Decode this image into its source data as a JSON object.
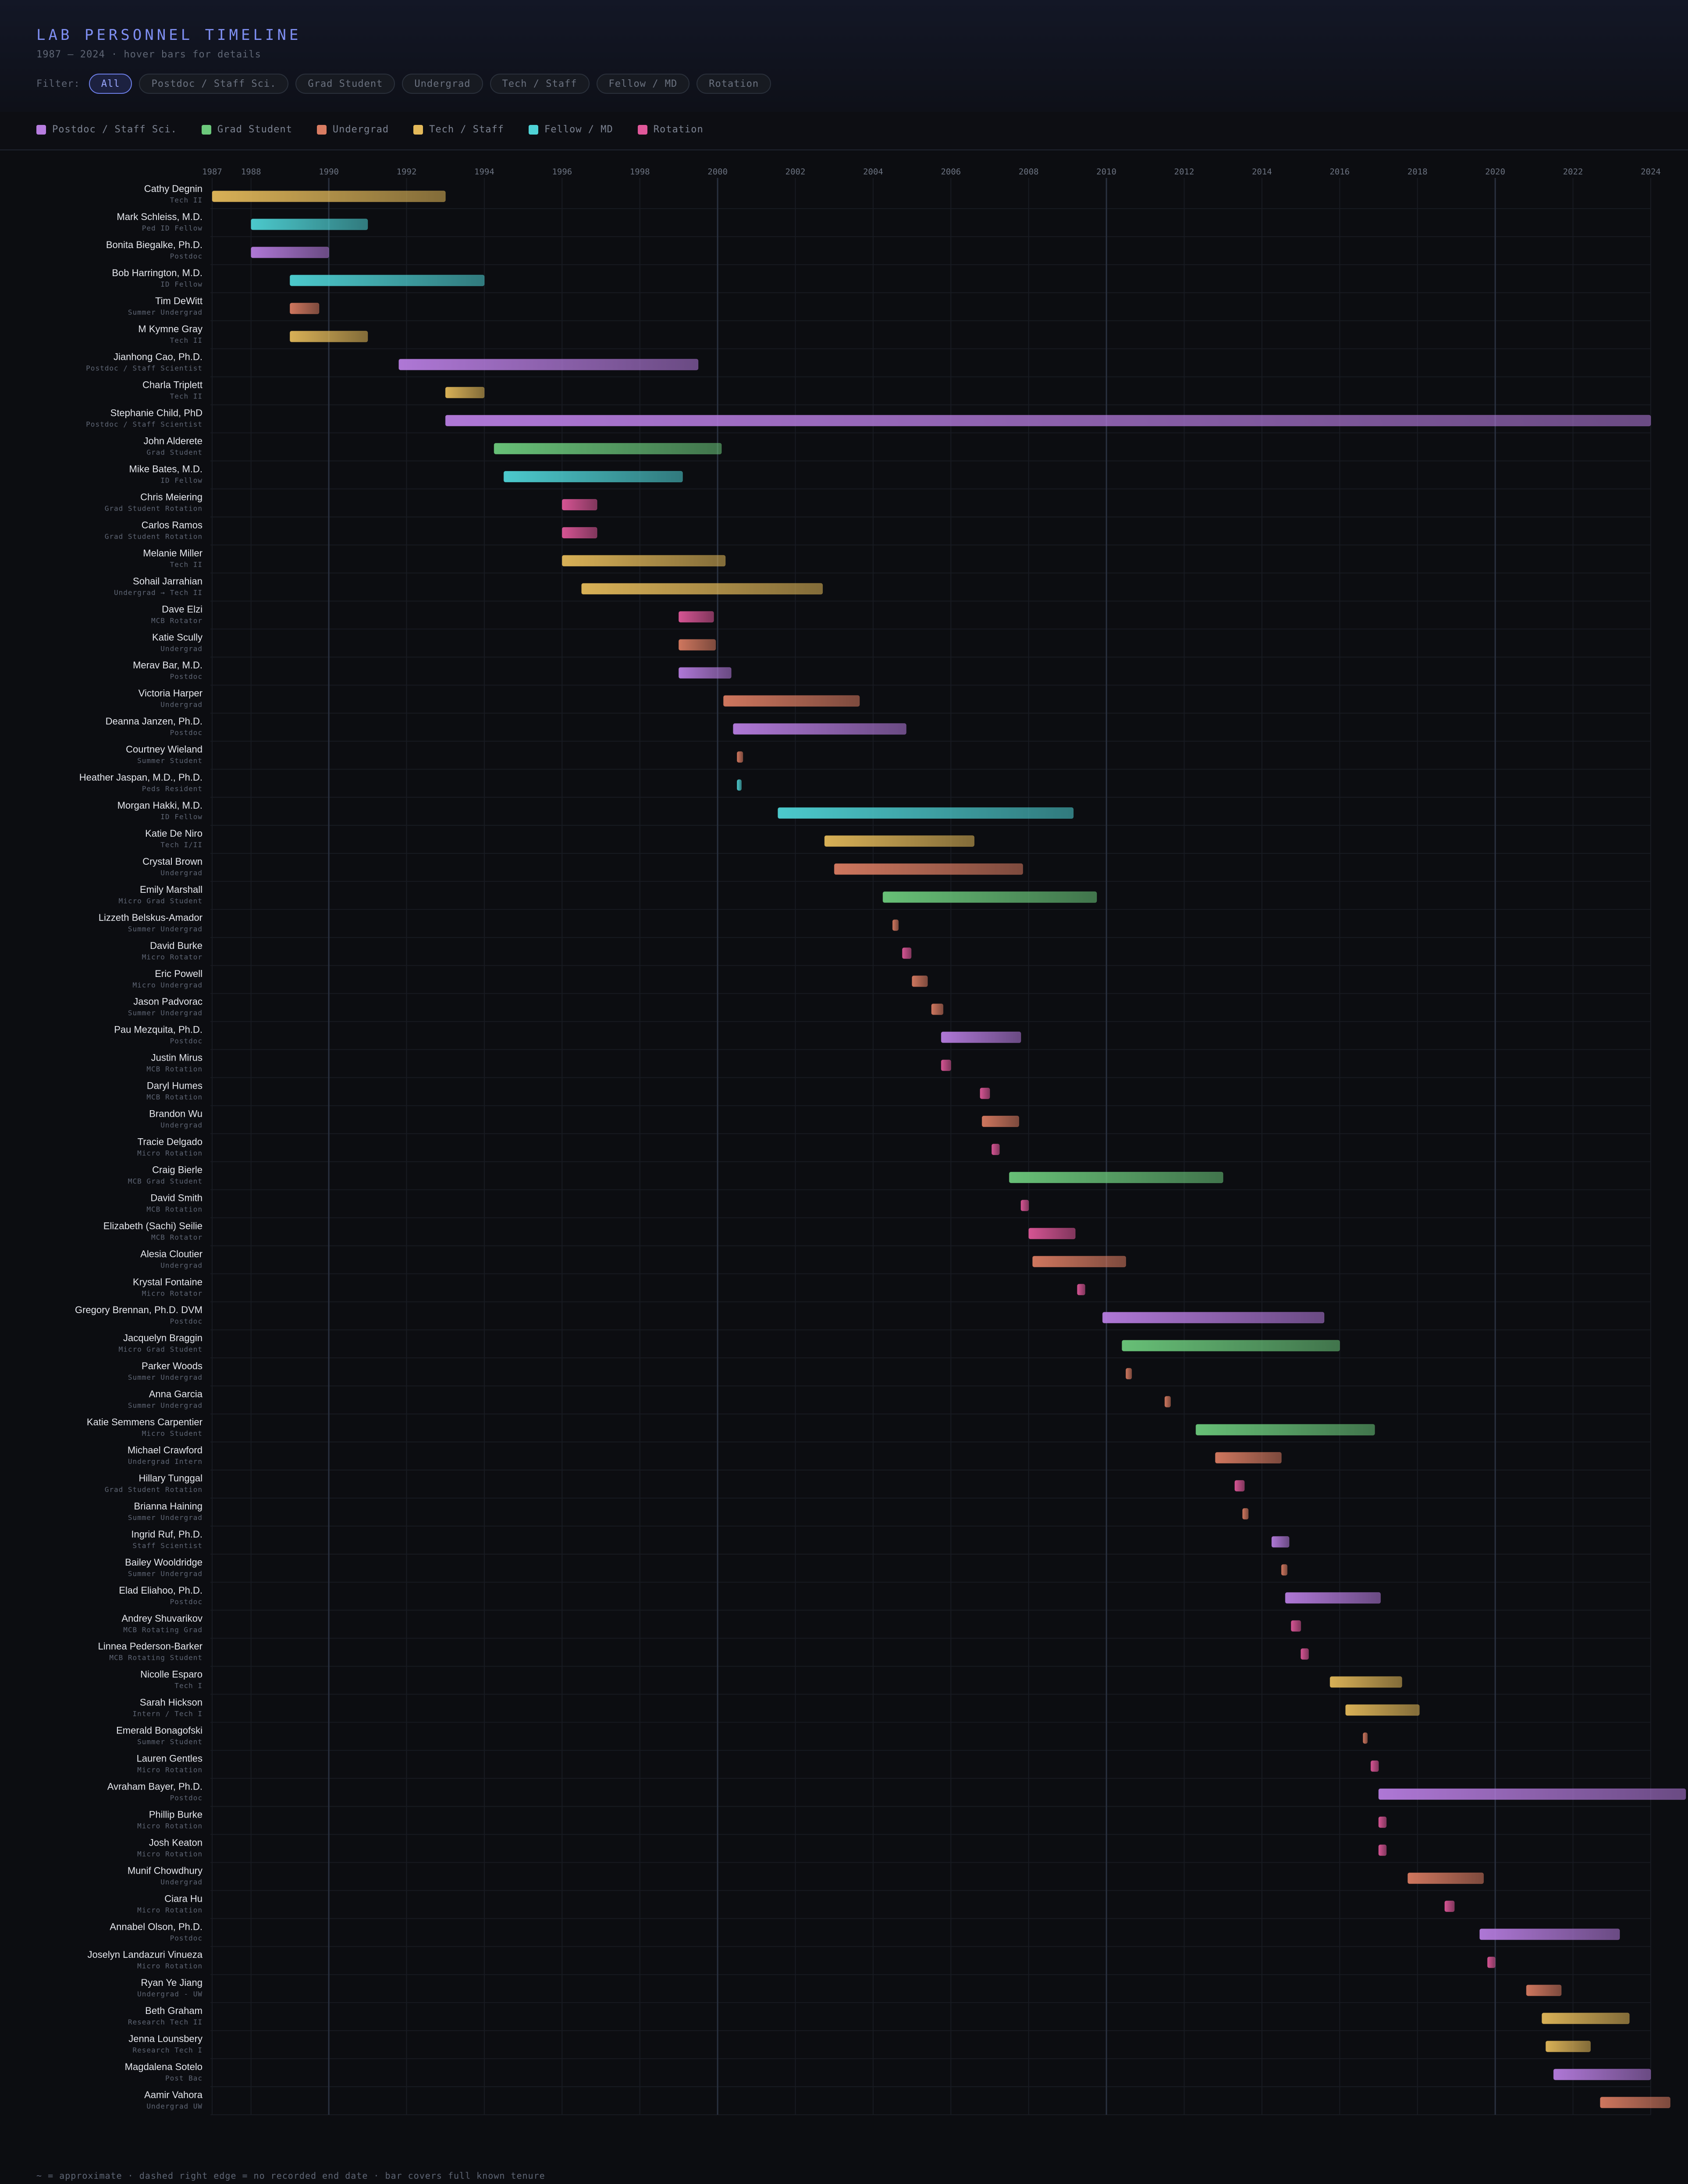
{
  "header": {
    "title": "LAB PERSONNEL TIMELINE",
    "subtitle": "1987 – 2024 · hover bars for details",
    "filter_label": "Filter:",
    "filters": [
      {
        "label": "All",
        "active": true
      },
      {
        "label": "Postdoc / Staff Sci.",
        "active": false
      },
      {
        "label": "Grad Student",
        "active": false
      },
      {
        "label": "Undergrad",
        "active": false
      },
      {
        "label": "Tech / Staff",
        "active": false
      },
      {
        "label": "Fellow / MD",
        "active": false
      },
      {
        "label": "Rotation",
        "active": false
      }
    ]
  },
  "legend": [
    {
      "label": "Postdoc / Staff Sci.",
      "color": "#b77de0"
    },
    {
      "label": "Grad Student",
      "color": "#6cc97c"
    },
    {
      "label": "Undergrad",
      "color": "#d97c62"
    },
    {
      "label": "Tech / Staff",
      "color": "#e3b95a"
    },
    {
      "label": "Fellow / MD",
      "color": "#4fd3d6"
    },
    {
      "label": "Rotation",
      "color": "#e0589a"
    }
  ],
  "footer": "~ = approximate · dashed right edge = no recorded end date · bar covers full known tenure",
  "chart_data": {
    "type": "gantt",
    "x_ticks": [
      1987,
      1988,
      1990,
      1992,
      1994,
      1996,
      1998,
      2000,
      2002,
      2004,
      2006,
      2008,
      2010,
      2012,
      2014,
      2016,
      2018,
      2020,
      2022,
      2024
    ],
    "xlim": [
      1987,
      2024
    ],
    "highlight_years": [
      1990,
      2000,
      2010,
      2020
    ],
    "grid": true,
    "colors": {
      "postdoc": "#b77de0",
      "grad": "#6cc97c",
      "undergrad": "#d97c62",
      "tech": "#e3b95a",
      "fellow": "#4fd3d6",
      "rotation": "#e0589a"
    },
    "people": [
      {
        "name": "Cathy Degnin",
        "role": "Tech II",
        "cat": "tech",
        "start": 1987.0,
        "end": 1993.0
      },
      {
        "name": "Mark Schleiss, M.D.",
        "role": "Ped ID Fellow",
        "cat": "fellow",
        "start": 1988.0,
        "end": 1991.0
      },
      {
        "name": "Bonita Biegalke, Ph.D.",
        "role": "Postdoc",
        "cat": "postdoc",
        "start": 1988.0,
        "end": 1990.0
      },
      {
        "name": "Bob Harrington, M.D.",
        "role": "ID Fellow",
        "cat": "fellow",
        "start": 1989.0,
        "end": 1994.0
      },
      {
        "name": "Tim DeWitt",
        "role": "Summer Undergrad",
        "cat": "undergrad",
        "start": 1989.0,
        "end": 1989.75
      },
      {
        "name": "M Kymne Gray",
        "role": "Tech II",
        "cat": "tech",
        "start": 1989.0,
        "end": 1991.0
      },
      {
        "name": "Jianhong Cao, Ph.D.",
        "role": "Postdoc / Staff Scientist",
        "cat": "postdoc",
        "start": 1991.8,
        "end": 1999.5
      },
      {
        "name": "Charla Triplett",
        "role": "Tech II",
        "cat": "tech",
        "start": 1993.0,
        "end": 1994.0
      },
      {
        "name": "Stephanie Child, PhD",
        "role": "Postdoc / Staff Scientist",
        "cat": "postdoc",
        "start": 1993.0,
        "end": 2024.0
      },
      {
        "name": "John Alderete",
        "role": "Grad Student",
        "cat": "grad",
        "start": 1994.25,
        "end": 2000.1
      },
      {
        "name": "Mike Bates, M.D.",
        "role": "ID Fellow",
        "cat": "fellow",
        "start": 1994.5,
        "end": 1999.1
      },
      {
        "name": "Chris Meiering",
        "role": "Grad Student Rotation",
        "cat": "rotation",
        "start": 1996.0,
        "end": 1996.9
      },
      {
        "name": "Carlos Ramos",
        "role": "Grad Student Rotation",
        "cat": "rotation",
        "start": 1996.0,
        "end": 1996.9
      },
      {
        "name": "Melanie Miller",
        "role": "Tech II",
        "cat": "tech",
        "start": 1996.0,
        "end": 2000.2
      },
      {
        "name": "Sohail Jarrahian",
        "role": "Undergrad → Tech II",
        "cat": "tech",
        "start": 1996.5,
        "end": 2002.7
      },
      {
        "name": "Dave Elzi",
        "role": "MCB Rotator",
        "cat": "rotation",
        "start": 1999.0,
        "end": 1999.9
      },
      {
        "name": "Katie Scully",
        "role": "Undergrad",
        "cat": "undergrad",
        "start": 1999.0,
        "end": 1999.95
      },
      {
        "name": "Merav Bar, M.D.",
        "role": "Postdoc",
        "cat": "postdoc",
        "start": 1999.0,
        "end": 2000.35
      },
      {
        "name": "Victoria Harper",
        "role": "Undergrad",
        "cat": "undergrad",
        "start": 2000.15,
        "end": 2003.65
      },
      {
        "name": "Deanna Janzen, Ph.D.",
        "role": "Postdoc",
        "cat": "postdoc",
        "start": 2000.4,
        "end": 2004.85
      },
      {
        "name": "Courtney Wieland",
        "role": "Summer Student",
        "cat": "undergrad",
        "start": 2000.5,
        "end": 2000.65
      },
      {
        "name": "Heather Jaspan, M.D., Ph.D.",
        "role": "Peds Resident",
        "cat": "fellow",
        "start": 2000.5,
        "end": 2000.6
      },
      {
        "name": "Morgan Hakki, M.D.",
        "role": "ID Fellow",
        "cat": "fellow",
        "start": 2001.55,
        "end": 2009.15
      },
      {
        "name": "Katie De Niro",
        "role": "Tech I/II",
        "cat": "tech",
        "start": 2002.75,
        "end": 2006.6
      },
      {
        "name": "Crystal Brown",
        "role": "Undergrad",
        "cat": "undergrad",
        "start": 2003.0,
        "end": 2007.85
      },
      {
        "name": "Emily Marshall",
        "role": "Micro Grad Student",
        "cat": "grad",
        "start": 2004.25,
        "end": 2009.75
      },
      {
        "name": "Lizzeth Belskus-Amador",
        "role": "Summer Undergrad",
        "cat": "undergrad",
        "start": 2004.5,
        "end": 2004.65
      },
      {
        "name": "David Burke",
        "role": "Micro Rotator",
        "cat": "rotation",
        "start": 2004.75,
        "end": 2004.98
      },
      {
        "name": "Eric Powell",
        "role": "Micro Undergrad",
        "cat": "undergrad",
        "start": 2005.0,
        "end": 2005.4
      },
      {
        "name": "Jason Padvorac",
        "role": "Summer Undergrad",
        "cat": "undergrad",
        "start": 2005.5,
        "end": 2005.8
      },
      {
        "name": "Pau Mezquita, Ph.D.",
        "role": "Postdoc",
        "cat": "postdoc",
        "start": 2005.75,
        "end": 2007.8
      },
      {
        "name": "Justin Mirus",
        "role": "MCB Rotation",
        "cat": "rotation",
        "start": 2005.75,
        "end": 2006.0
      },
      {
        "name": "Daryl Humes",
        "role": "MCB Rotation",
        "cat": "rotation",
        "start": 2006.75,
        "end": 2007.0
      },
      {
        "name": "Brandon Wu",
        "role": "Undergrad",
        "cat": "undergrad",
        "start": 2006.8,
        "end": 2007.75
      },
      {
        "name": "Tracie Delgado",
        "role": "Micro Rotation",
        "cat": "rotation",
        "start": 2007.05,
        "end": 2007.25
      },
      {
        "name": "Craig Bierle",
        "role": "MCB Grad Student",
        "cat": "grad",
        "start": 2007.5,
        "end": 2013.0
      },
      {
        "name": "David Smith",
        "role": "MCB Rotation",
        "cat": "rotation",
        "start": 2007.8,
        "end": 2008.0
      },
      {
        "name": "Elizabeth (Sachi) Seilie",
        "role": "MCB Rotator",
        "cat": "rotation",
        "start": 2008.0,
        "end": 2009.2
      },
      {
        "name": "Alesia Cloutier",
        "role": "Undergrad",
        "cat": "undergrad",
        "start": 2008.1,
        "end": 2010.5
      },
      {
        "name": "Krystal Fontaine",
        "role": "Micro Rotator",
        "cat": "rotation",
        "start": 2009.25,
        "end": 2009.45
      },
      {
        "name": "Gregory Brennan, Ph.D. DVM",
        "role": "Postdoc",
        "cat": "postdoc",
        "start": 2009.9,
        "end": 2015.6
      },
      {
        "name": "Jacquelyn Braggin",
        "role": "Micro Grad Student",
        "cat": "grad",
        "start": 2010.4,
        "end": 2016.0
      },
      {
        "name": "Parker Woods",
        "role": "Summer Undergrad",
        "cat": "undergrad",
        "start": 2010.5,
        "end": 2010.65
      },
      {
        "name": "Anna Garcia",
        "role": "Summer Undergrad",
        "cat": "undergrad",
        "start": 2011.5,
        "end": 2011.65
      },
      {
        "name": "Katie Semmens Carpentier",
        "role": "Micro Student",
        "cat": "grad",
        "start": 2012.3,
        "end": 2016.9
      },
      {
        "name": "Michael Crawford",
        "role": "Undergrad Intern",
        "cat": "undergrad",
        "start": 2012.8,
        "end": 2014.5
      },
      {
        "name": "Hillary Tunggal",
        "role": "Grad Student Rotation",
        "cat": "rotation",
        "start": 2013.3,
        "end": 2013.55
      },
      {
        "name": "Brianna Haining",
        "role": "Summer Undergrad",
        "cat": "undergrad",
        "start": 2013.5,
        "end": 2013.65
      },
      {
        "name": "Ingrid Ruf, Ph.D.",
        "role": "Staff Scientist",
        "cat": "postdoc",
        "start": 2014.25,
        "end": 2014.7
      },
      {
        "name": "Bailey Wooldridge",
        "role": "Summer Undergrad",
        "cat": "undergrad",
        "start": 2014.5,
        "end": 2014.65
      },
      {
        "name": "Elad Eliahoo, Ph.D.",
        "role": "Postdoc",
        "cat": "postdoc",
        "start": 2014.6,
        "end": 2017.05
      },
      {
        "name": "Andrey Shuvarikov",
        "role": "MCB Rotating Grad",
        "cat": "rotation",
        "start": 2014.75,
        "end": 2015.0
      },
      {
        "name": "Linnea Pederson-Barker",
        "role": "MCB Rotating Student",
        "cat": "rotation",
        "start": 2015.0,
        "end": 2015.2
      },
      {
        "name": "Nicolle Esparo",
        "role": "Tech I",
        "cat": "tech",
        "start": 2015.75,
        "end": 2017.6
      },
      {
        "name": "Sarah Hickson",
        "role": "Intern / Tech I",
        "cat": "tech",
        "start": 2016.15,
        "end": 2018.05
      },
      {
        "name": "Emerald Bonagofski",
        "role": "Summer Student",
        "cat": "undergrad",
        "start": 2016.6,
        "end": 2016.7
      },
      {
        "name": "Lauren Gentles",
        "role": "Micro Rotation",
        "cat": "rotation",
        "start": 2016.8,
        "end": 2017.0
      },
      {
        "name": "Avraham Bayer, Ph.D.",
        "role": "Postdoc",
        "cat": "postdoc",
        "start": 2017.0,
        "end": 2024.9
      },
      {
        "name": "Phillip Burke",
        "role": "Micro Rotation",
        "cat": "rotation",
        "start": 2017.0,
        "end": 2017.2
      },
      {
        "name": "Josh Keaton",
        "role": "Micro Rotation",
        "cat": "rotation",
        "start": 2017.0,
        "end": 2017.2
      },
      {
        "name": "Munif Chowdhury",
        "role": "Undergrad",
        "cat": "undergrad",
        "start": 2017.75,
        "end": 2019.7
      },
      {
        "name": "Ciara Hu",
        "role": "Micro Rotation",
        "cat": "rotation",
        "start": 2018.7,
        "end": 2018.95
      },
      {
        "name": "Annabel Olson, Ph.D.",
        "role": "Postdoc",
        "cat": "postdoc",
        "start": 2019.6,
        "end": 2023.2
      },
      {
        "name": "Joselyn Landazuri Vinueza",
        "role": "Micro Rotation",
        "cat": "rotation",
        "start": 2019.8,
        "end": 2020.0
      },
      {
        "name": "Ryan Ye Jiang",
        "role": "Undergrad - UW",
        "cat": "undergrad",
        "start": 2020.8,
        "end": 2021.7
      },
      {
        "name": "Beth Graham",
        "role": "Research Tech II",
        "cat": "tech",
        "start": 2021.2,
        "end": 2023.45
      },
      {
        "name": "Jenna Lounsbery",
        "role": "Research Tech I",
        "cat": "tech",
        "start": 2021.3,
        "end": 2022.45
      },
      {
        "name": "Magdalena Sotelo",
        "role": "Post Bac",
        "cat": "postdoc",
        "start": 2021.5,
        "end": 2024.0
      },
      {
        "name": "Aamir Vahora",
        "role": "Undergrad UW",
        "cat": "undergrad",
        "start": 2022.7,
        "end": 2024.5
      }
    ]
  }
}
